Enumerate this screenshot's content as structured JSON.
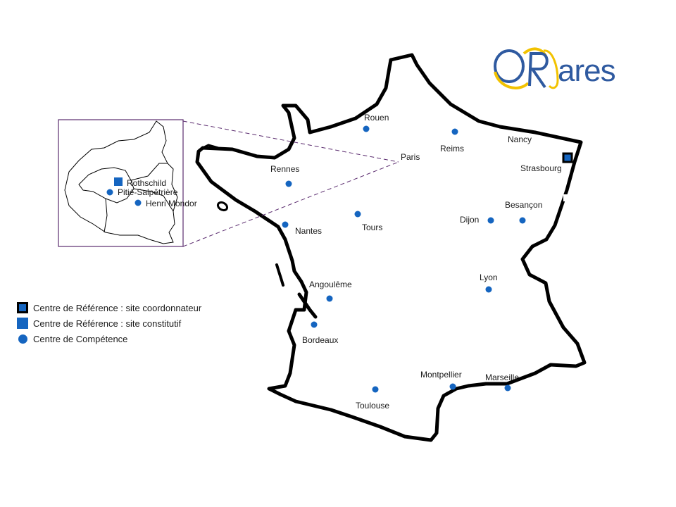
{
  "logo": {
    "brand": "ORares",
    "accent_color": "#f2c200",
    "brand_color": "#2f5aa0"
  },
  "colors": {
    "site": "#1565c0",
    "outline": "#000000",
    "inset_frame": "#5b2c6f"
  },
  "legend": {
    "coordinator": "Centre de Référence : site coordonnateur",
    "constitutive": "Centre de Référence : site constitutif",
    "competence": "Centre de Compétence"
  },
  "map": {
    "paris_label": "Paris",
    "cities": [
      {
        "key": "rouen",
        "label": "Rouen",
        "type": "competence"
      },
      {
        "key": "reims",
        "label": "Reims",
        "type": "competence"
      },
      {
        "key": "nancy",
        "label": "Nancy",
        "type": "label"
      },
      {
        "key": "strasbourg",
        "label": "Strasbourg",
        "type": "coordinator"
      },
      {
        "key": "rennes",
        "label": "Rennes",
        "type": "competence"
      },
      {
        "key": "besancon",
        "label": "Besançon",
        "type": "competence"
      },
      {
        "key": "dijon",
        "label": "Dijon",
        "type": "competence"
      },
      {
        "key": "tours",
        "label": "Tours",
        "type": "competence"
      },
      {
        "key": "nantes",
        "label": "Nantes",
        "type": "competence"
      },
      {
        "key": "angouleme",
        "label": "Angoulême",
        "type": "competence"
      },
      {
        "key": "lyon",
        "label": "Lyon",
        "type": "competence"
      },
      {
        "key": "bordeaux",
        "label": "Bordeaux",
        "type": "competence"
      },
      {
        "key": "montpellier",
        "label": "Montpellier",
        "type": "competence"
      },
      {
        "key": "marseille",
        "label": "Marseille",
        "type": "competence"
      },
      {
        "key": "toulouse",
        "label": "Toulouse",
        "type": "competence"
      }
    ]
  },
  "inset": {
    "sites": [
      {
        "key": "rothschild",
        "label": "Rothschild",
        "type": "constitutive"
      },
      {
        "key": "pitie",
        "label": "Pitié-Salpêtrière",
        "type": "competence"
      },
      {
        "key": "mondor",
        "label": "Henri Mondor",
        "type": "competence"
      }
    ]
  }
}
